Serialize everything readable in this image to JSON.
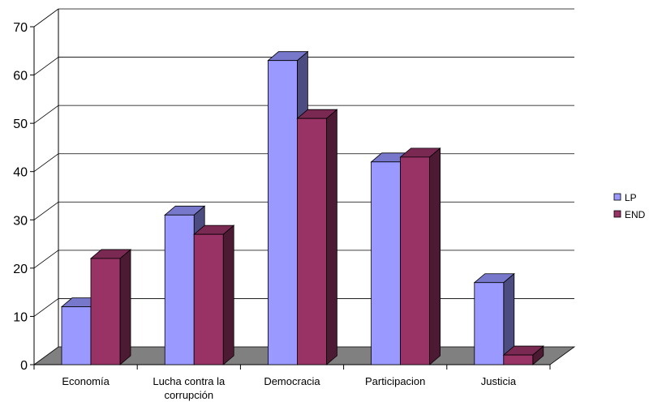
{
  "chart_data": {
    "type": "bar",
    "title": "",
    "xlabel": "",
    "ylabel": "",
    "ylim": [
      0,
      70
    ],
    "yticks": [
      0,
      10,
      20,
      30,
      40,
      50,
      60,
      70
    ],
    "categories": [
      "Economía",
      "Lucha contra la corrupción",
      "Democracia",
      "Participacion",
      "Justicia"
    ],
    "category_lines": [
      [
        "Economía"
      ],
      [
        "Lucha contra la",
        "corrupción"
      ],
      [
        "Democracia"
      ],
      [
        "Participacion"
      ],
      [
        "Justicia"
      ]
    ],
    "series": [
      {
        "name": "LP",
        "values": [
          12,
          31,
          63,
          42,
          17
        ],
        "color": "#9999ff",
        "side_color": "#4c4c80",
        "top_color": "#7777cc"
      },
      {
        "name": "END",
        "values": [
          22,
          27,
          51,
          43,
          2
        ],
        "color": "#993366",
        "side_color": "#4d1a33",
        "top_color": "#7a2952"
      }
    ],
    "grid": true,
    "legend_position": "right",
    "floor_color": "#808080",
    "gridline_color": "#000000"
  }
}
